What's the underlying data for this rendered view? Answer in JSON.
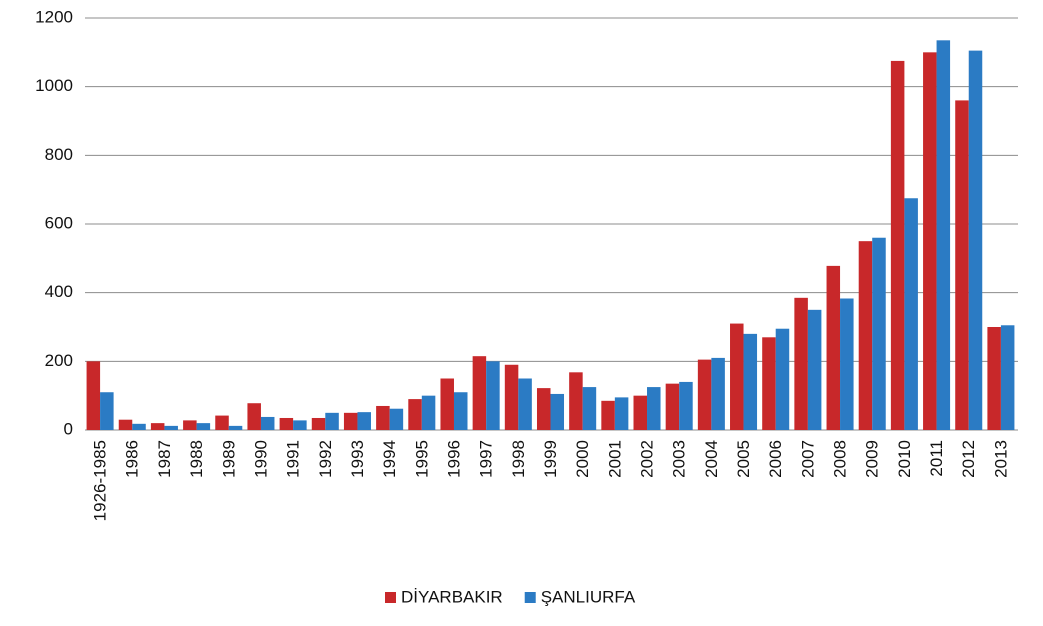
{
  "chart_data": {
    "type": "bar",
    "categories": [
      "1926-1985",
      "1986",
      "1987",
      "1988",
      "1989",
      "1990",
      "1991",
      "1992",
      "1993",
      "1994",
      "1995",
      "1996",
      "1997",
      "1998",
      "1999",
      "2000",
      "2001",
      "2002",
      "2003",
      "2004",
      "2005",
      "2006",
      "2007",
      "2008",
      "2009",
      "2010",
      "2011",
      "2012",
      "2013"
    ],
    "series": [
      {
        "name": "DİYARBAKIR",
        "color": "#c8282a",
        "values": [
          200,
          30,
          20,
          28,
          42,
          78,
          35,
          35,
          50,
          70,
          90,
          150,
          215,
          190,
          122,
          168,
          85,
          100,
          135,
          205,
          310,
          270,
          385,
          478,
          550,
          1075,
          1100,
          960,
          300
        ]
      },
      {
        "name": "ŞANLIURFA",
        "color": "#2b7bc4",
        "values": [
          110,
          18,
          12,
          20,
          12,
          38,
          28,
          50,
          52,
          62,
          100,
          110,
          200,
          150,
          105,
          125,
          95,
          125,
          140,
          210,
          280,
          295,
          350,
          383,
          560,
          675,
          1135,
          1105,
          305
        ]
      }
    ],
    "ylim": [
      0,
      1200
    ],
    "yticks": [
      0,
      200,
      400,
      600,
      800,
      1000,
      1200
    ],
    "grid": true,
    "legend": "bottom"
  }
}
